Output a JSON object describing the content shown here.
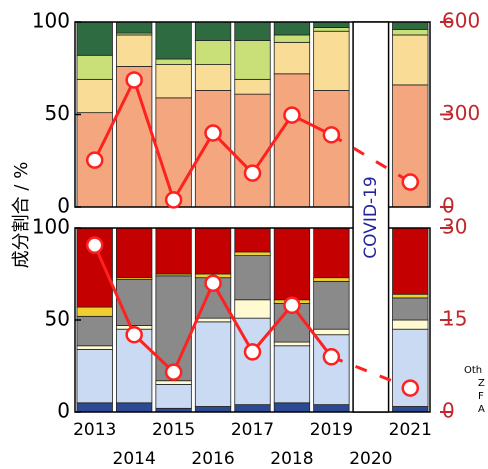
{
  "y_label": "成分割合 / %",
  "annotation": "COVID-19",
  "legend_fragments": [
    "Oth",
    "Z",
    "F",
    "A"
  ],
  "chart_data": [
    {
      "type": "stacked_bar_line",
      "ylim": [
        0,
        100
      ],
      "yticks": [
        0,
        50,
        100
      ],
      "y2lim": [
        0,
        600
      ],
      "y2ticks": [
        0,
        300,
        600
      ],
      "gap_line_style": "dashed",
      "series": [
        {
          "color": "#f4a77e",
          "values": [
            51,
            76,
            59,
            63,
            61,
            72,
            63,
            null,
            66
          ]
        },
        {
          "color": "#f9dc96",
          "values": [
            18,
            17,
            18,
            14,
            8,
            17,
            32,
            null,
            27
          ]
        },
        {
          "color": "#c9df78",
          "values": [
            13,
            1,
            3,
            13,
            21,
            4,
            2,
            null,
            3
          ]
        },
        {
          "color": "#2e6b40",
          "values": [
            18,
            6,
            20,
            10,
            10,
            7,
            3,
            null,
            4
          ]
        },
        {
          "color": "#ff2020",
          "axis": "y2",
          "line": true,
          "values": [
            152,
            412,
            23,
            240,
            110,
            298,
            234,
            null,
            81
          ]
        }
      ]
    },
    {
      "type": "stacked_bar_line",
      "categories": [
        "2013",
        "2014",
        "2015",
        "2016",
        "2017",
        "2018",
        "2019",
        "2020",
        "2021"
      ],
      "ylim": [
        0,
        100
      ],
      "yticks": [
        0,
        50,
        100
      ],
      "y2lim": [
        0,
        30
      ],
      "y2ticks": [
        0,
        15,
        30
      ],
      "gap_line_style": "dashed",
      "series": [
        {
          "color": "#2c4a94",
          "values": [
            5,
            5,
            2,
            3,
            4,
            5,
            4,
            null,
            3
          ]
        },
        {
          "color": "#c9daf2",
          "values": [
            29,
            40,
            13,
            46,
            47,
            31,
            38,
            null,
            42
          ]
        },
        {
          "color": "#fffad2",
          "values": [
            2,
            2,
            2,
            2,
            10,
            2,
            3,
            null,
            5
          ]
        },
        {
          "color": "#8a8a8a",
          "values": [
            16,
            25,
            57,
            22,
            24,
            21,
            26,
            null,
            12
          ]
        },
        {
          "color": "#f0cf30",
          "values": [
            5,
            1,
            1,
            2,
            2,
            2,
            2,
            null,
            2
          ]
        },
        {
          "color": "#c40000",
          "values": [
            43,
            27,
            25,
            25,
            13,
            39,
            27,
            null,
            36
          ]
        },
        {
          "color": "#ff2020",
          "axis": "y2",
          "line": true,
          "values": [
            27.2,
            12.6,
            6.5,
            21,
            9.8,
            17.4,
            9.0,
            null,
            3.9
          ]
        }
      ]
    }
  ]
}
